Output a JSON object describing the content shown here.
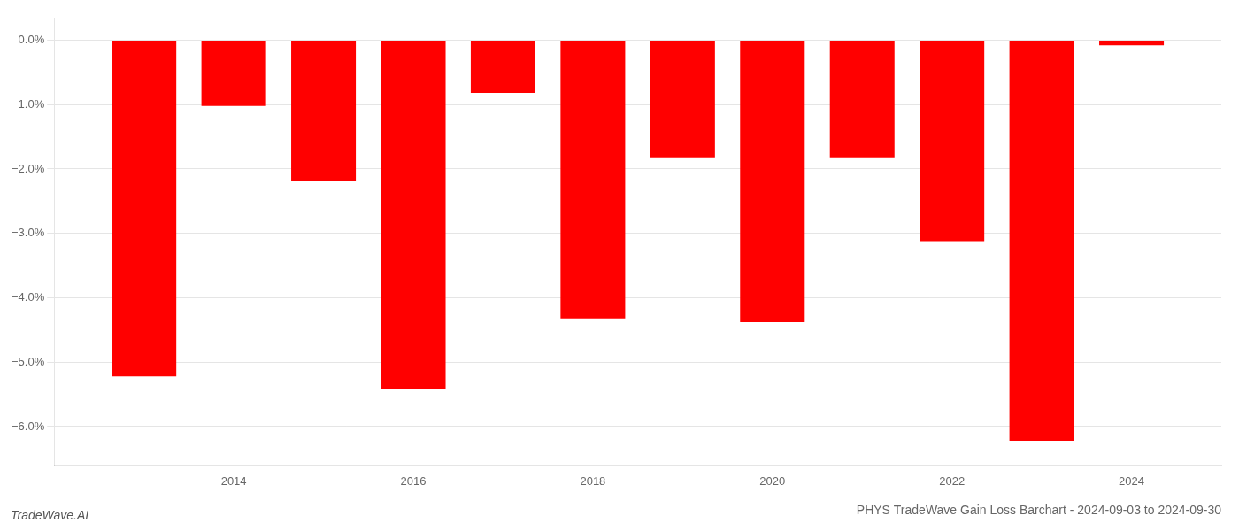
{
  "chart_data": {
    "type": "bar",
    "title": "PHYS TradeWave Gain Loss Barchart - 2024-09-03 to 2024-09-30",
    "annotations": [
      "TradeWave.AI"
    ],
    "x": [
      2013,
      2014,
      2015,
      2016,
      2017,
      2018,
      2019,
      2020,
      2021,
      2022,
      2023,
      2024
    ],
    "values": [
      -5.22,
      -1.02,
      -2.18,
      -5.42,
      -0.82,
      -4.32,
      -1.82,
      -4.38,
      -1.82,
      -3.12,
      -6.22,
      -0.08
    ],
    "color": "#ff0000",
    "xlim": [
      2012,
      2025
    ],
    "xticks": [
      2014,
      2016,
      2018,
      2020,
      2022,
      2024
    ],
    "ylim": [
      -6.6,
      0.35
    ],
    "yticks": [
      {
        "value": 0.0,
        "label": "0.0%"
      },
      {
        "value": -1.0,
        "label": "−1.0%"
      },
      {
        "value": -2.0,
        "label": "−2.0%"
      },
      {
        "value": -3.0,
        "label": "−3.0%"
      },
      {
        "value": -4.0,
        "label": "−4.0%"
      },
      {
        "value": -5.0,
        "label": "−5.0%"
      },
      {
        "value": -6.0,
        "label": "−6.0%"
      }
    ],
    "grid": true
  }
}
